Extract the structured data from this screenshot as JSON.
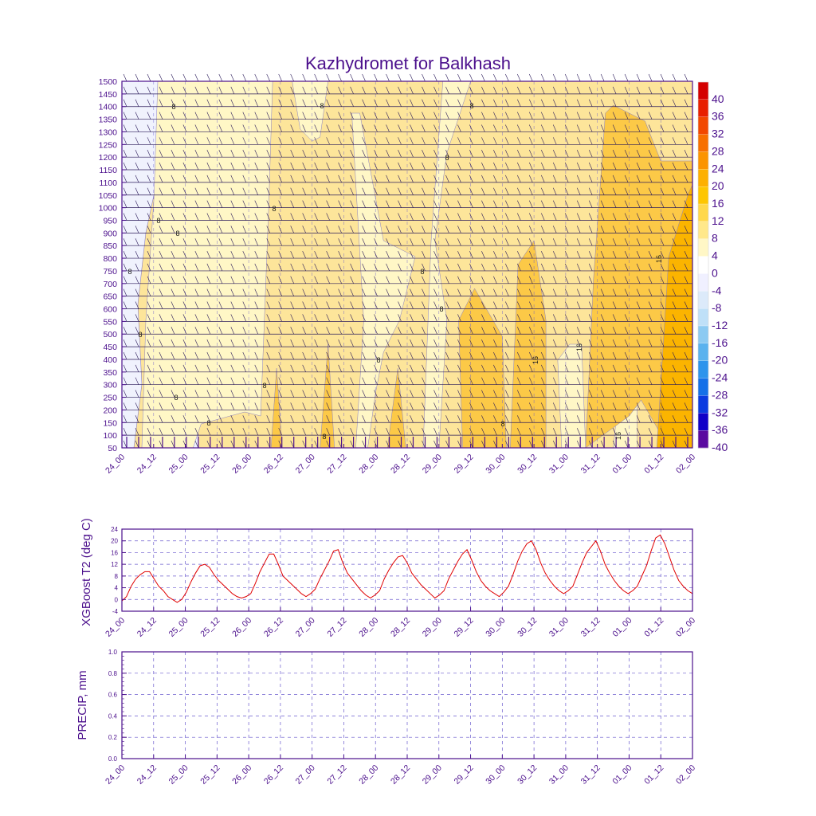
{
  "figure": {
    "title": "Kazhydromet for Balkhash",
    "colors": {
      "frame": "#4b0f8c",
      "text": "#4b0f8c",
      "grid": "#6a5acd",
      "line": "#e00000",
      "barb": "#2a1a5a"
    }
  },
  "chart_data": [
    {
      "type": "heatmap",
      "name": "cross-section",
      "title": "Kazhydromet for Balkhash",
      "x_tick_labels": [
        "24_00",
        "24_12",
        "25_00",
        "25_12",
        "26_00",
        "26_12",
        "27_00",
        "27_12",
        "28_00",
        "28_12",
        "29_00",
        "29_12",
        "30_00",
        "30_12",
        "31_00",
        "31_12",
        "01_00",
        "01_12",
        "02_00"
      ],
      "y_tick_labels": [
        1500,
        1450,
        1400,
        1350,
        1300,
        1250,
        1200,
        1150,
        1100,
        1050,
        1000,
        950,
        900,
        850,
        800,
        750,
        700,
        650,
        600,
        550,
        500,
        450,
        400,
        350,
        300,
        250,
        200,
        150,
        100,
        50
      ],
      "ylim": [
        50,
        1500
      ],
      "contour_labels": [
        "8",
        "8",
        "8",
        "8",
        "8",
        "8",
        "8",
        "8",
        "8",
        "8",
        "8",
        "8",
        "8",
        "8",
        "8",
        "8",
        "8",
        "16",
        "16",
        "16",
        "16"
      ],
      "colorbar": {
        "labels": [
          "40",
          "36",
          "32",
          "28",
          "24",
          "20",
          "16",
          "12",
          "8",
          "4",
          "0",
          "-4",
          "-8",
          "-12",
          "-16",
          "-20",
          "-24",
          "-28",
          "-32",
          "-36",
          "-40"
        ],
        "colors": [
          "#d40000",
          "#e82000",
          "#f24800",
          "#f77000",
          "#fb9400",
          "#fdb000",
          "#fec600",
          "#ffd84a",
          "#ffe88a",
          "#fff7c6",
          "#ffffff",
          "#f0f0ff",
          "#dceafa",
          "#bfe0f8",
          "#8ccaf2",
          "#5ab2ee",
          "#2d94ec",
          "#1470e8",
          "#0a3ae0",
          "#1000c8",
          "#5a0aa0"
        ]
      }
    },
    {
      "type": "line",
      "name": "t2",
      "title": "",
      "xlabel": "",
      "ylabel": "XGBoost T2 (deg C)",
      "ylim": [
        -4,
        24
      ],
      "y_tick_labels": [
        "-4",
        "0",
        "4",
        "8",
        "12",
        "16",
        "20",
        "24"
      ],
      "x_tick_labels": [
        "24_00",
        "24_12",
        "25_00",
        "25_12",
        "26_00",
        "26_12",
        "27_00",
        "27_12",
        "28_00",
        "28_12",
        "29_00",
        "29_12",
        "30_00",
        "30_12",
        "31_00",
        "31_12",
        "01_00",
        "01_12",
        "02_00"
      ],
      "series": [
        {
          "name": "XGBoost T2",
          "values": [
            -0.5,
            1,
            4.5,
            7,
            8.5,
            9.5,
            9.5,
            7,
            4.5,
            3,
            1,
            0,
            -1,
            0,
            2.5,
            6,
            9,
            11.5,
            12,
            11,
            8.5,
            6.5,
            5,
            3.5,
            2,
            1,
            0.5,
            1,
            2,
            5.5,
            9.5,
            12.5,
            15.5,
            15.5,
            12,
            8,
            6.5,
            5,
            3.5,
            2,
            1,
            2,
            3.5,
            7,
            10,
            13,
            16.5,
            17,
            12.5,
            9,
            7,
            5,
            3,
            1.5,
            0.5,
            1.5,
            3,
            7,
            10,
            12.5,
            14.5,
            15,
            12.5,
            9,
            7,
            5,
            3.5,
            2,
            0.5,
            1.5,
            3,
            7,
            10,
            13,
            15.5,
            17,
            13.5,
            9.5,
            6.5,
            4.5,
            3,
            2,
            1,
            2.5,
            4.5,
            8.5,
            13,
            16.5,
            19,
            20,
            17,
            12.5,
            9,
            6.5,
            4.5,
            3,
            2,
            3,
            4.5,
            8.5,
            12.5,
            16,
            18,
            20,
            16.5,
            12,
            9,
            6.5,
            4.5,
            3,
            2,
            3,
            4.5,
            8,
            11.5,
            16.5,
            21,
            22,
            19,
            14.5,
            10,
            6.5,
            4.5,
            3,
            2
          ]
        }
      ]
    },
    {
      "type": "line",
      "name": "precip",
      "title": "",
      "xlabel": "",
      "ylabel": "PRECIP, mm",
      "ylim": [
        0,
        1
      ],
      "y_tick_labels": [
        "0.0",
        "0.2",
        "0.4",
        "0.6",
        "0.8",
        "1.0"
      ],
      "x_tick_labels": [
        "24_00",
        "24_12",
        "25_00",
        "25_12",
        "26_00",
        "26_12",
        "27_00",
        "27_12",
        "28_00",
        "28_12",
        "29_00",
        "29_12",
        "30_00",
        "30_12",
        "31_00",
        "31_12",
        "01_00",
        "01_12",
        "02_00"
      ],
      "series": []
    }
  ]
}
